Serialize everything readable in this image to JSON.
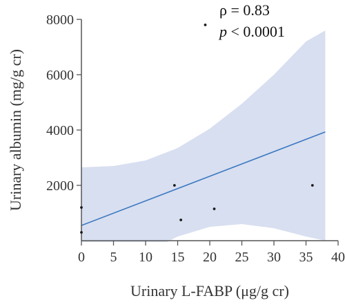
{
  "chart_data": {
    "type": "scatter",
    "xlabel": "Urinary L-FABP (μg/g cr)",
    "ylabel": "Urinary albumin (mg/g cr)",
    "xlim": [
      0,
      40
    ],
    "ylim": [
      0,
      8000
    ],
    "x_ticks": [
      0,
      5,
      10,
      15,
      20,
      25,
      30,
      35,
      40
    ],
    "y_ticks": [
      2000,
      4000,
      6000,
      8000
    ],
    "grid": false,
    "points": [
      {
        "x": 0.0,
        "y": 1200
      },
      {
        "x": 0.0,
        "y": 300
      },
      {
        "x": 14.5,
        "y": 2000
      },
      {
        "x": 15.5,
        "y": 750
      },
      {
        "x": 19.3,
        "y": 7800
      },
      {
        "x": 20.7,
        "y": 1150
      },
      {
        "x": 36.0,
        "y": 2000
      }
    ],
    "fit_line": {
      "x": [
        0,
        38
      ],
      "y": [
        550,
        3930
      ]
    },
    "confidence_band": {
      "x": [
        0,
        5,
        10,
        15,
        20,
        25,
        30,
        35,
        38
      ],
      "upper": [
        2650,
        2700,
        2900,
        3350,
        4050,
        4950,
        6000,
        7200,
        7600
      ],
      "lower": [
        -1550,
        -1100,
        -450,
        150,
        500,
        600,
        450,
        150,
        0
      ]
    },
    "annotation": {
      "rho_text": "ρ = 0.83",
      "p_symbol": "p",
      "p_rest": " < 0.0001"
    },
    "colors": {
      "band": "#d8dff0",
      "line": "#3a78c2",
      "points": "#1a1a1a",
      "axis": "#555555"
    }
  }
}
